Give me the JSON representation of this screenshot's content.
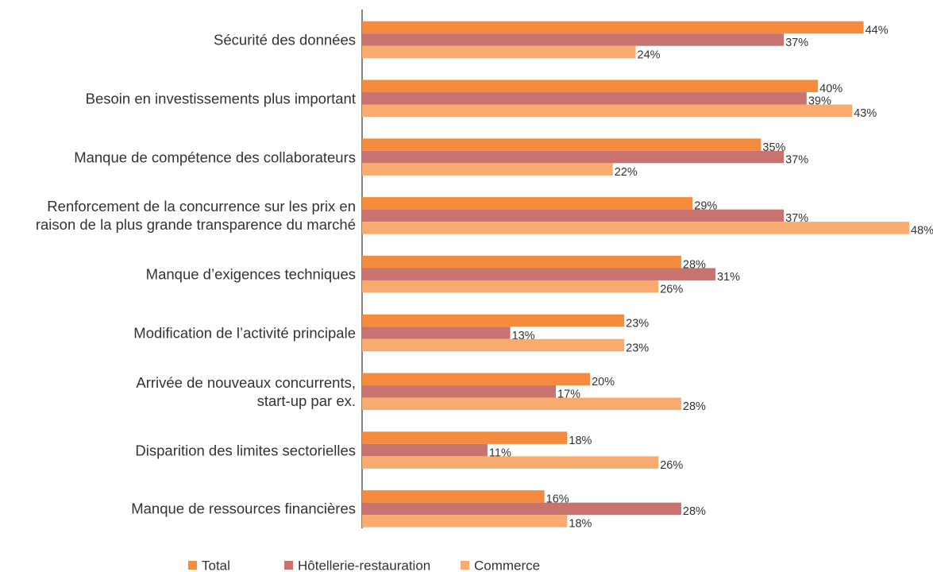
{
  "chart_data": {
    "type": "bar",
    "orientation": "horizontal",
    "categories": [
      "Sécurité des données",
      "Besoin en investissements plus important",
      "Manque de compétence des collaborateurs",
      "Renforcement de la concurrence sur les prix en\nraison de la plus grande transparence du marché",
      "Manque d’exigences techniques",
      "Modification de l’activité principale",
      "Arrivée de nouveaux concurrents,\nstart-up par ex.",
      "Disparition des limites sectorielles",
      "Manque de ressources financières"
    ],
    "series": [
      {
        "name": "Total",
        "color": "#f58b3c",
        "values": [
          44,
          40,
          35,
          29,
          28,
          23,
          20,
          18,
          16
        ],
        "value_labels": [
          "44%",
          "40%",
          "35%",
          "29%",
          "28%",
          "23%",
          "20%",
          "18%",
          "16%"
        ]
      },
      {
        "name": "Hôtellerie-restauration",
        "color": "#c87370",
        "values": [
          37,
          39,
          37,
          37,
          31,
          13,
          17,
          11,
          28
        ],
        "value_labels": [
          "37%",
          "39%",
          "37%",
          "37%",
          "31%",
          "13%",
          "17%",
          "11%",
          "28%"
        ]
      },
      {
        "name": "Commerce",
        "color": "#f9aa6e",
        "values": [
          24,
          43,
          22,
          48,
          26,
          23,
          28,
          26,
          18
        ],
        "value_labels": [
          "24%",
          "43%",
          "22%",
          "48%",
          "26%",
          "23%",
          "28%",
          "26%",
          "18%"
        ]
      }
    ],
    "legend": "bottom"
  }
}
